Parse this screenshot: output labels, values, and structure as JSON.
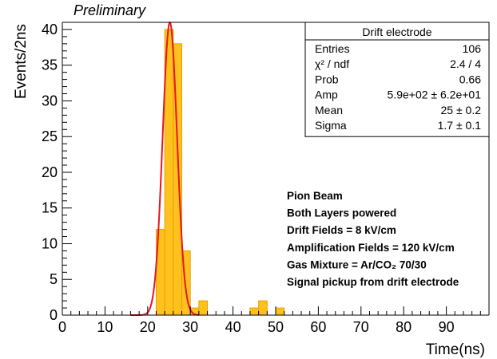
{
  "chart_data": {
    "type": "bar",
    "title": "Preliminary",
    "xlabel": "Time(ns)",
    "ylabel": "Events/2ns",
    "xlim": [
      0,
      100
    ],
    "ylim": [
      0,
      41
    ],
    "bin_width": 2,
    "x_ticks": [
      0,
      10,
      20,
      30,
      40,
      50,
      60,
      70,
      80,
      90
    ],
    "y_ticks": [
      0,
      5,
      10,
      15,
      20,
      25,
      30,
      35,
      40
    ],
    "bins": [
      {
        "x": 22,
        "value": 12
      },
      {
        "x": 24,
        "value": 40
      },
      {
        "x": 26,
        "value": 38
      },
      {
        "x": 28,
        "value": 9
      },
      {
        "x": 30,
        "value": 1
      },
      {
        "x": 32,
        "value": 2
      },
      {
        "x": 44,
        "value": 1
      },
      {
        "x": 46,
        "value": 2
      },
      {
        "x": 50,
        "value": 1
      }
    ],
    "fit": {
      "type": "gaussian",
      "amp": 41,
      "mean": 25.2,
      "sigma": 1.7,
      "range": [
        16,
        32
      ]
    },
    "colors": {
      "bar_fill": "#ffc11e",
      "bar_edge": "#e6a100",
      "fit_line": "#e8151b"
    },
    "stats_box": {
      "title": "Drift electrode",
      "rows": [
        {
          "label": "Entries",
          "value": "106"
        },
        {
          "label": "χ² / ndf",
          "value": "2.4 / 4"
        },
        {
          "label": "Prob",
          "value": "0.66"
        },
        {
          "label": "Amp",
          "value": "5.9e+02 ± 6.2e+01"
        },
        {
          "label": "Mean",
          "value": "25 ± 0.2"
        },
        {
          "label": "Sigma",
          "value": "1.7 ± 0.1"
        }
      ]
    },
    "annotations": [
      "Pion Beam",
      "Both Layers powered",
      "Drift Fields = 8 kV/cm",
      "Amplification Fields = 120 kV/cm",
      "Gas Mixture = Ar/CO₂ 70/30",
      "Signal pickup from drift electrode"
    ]
  }
}
